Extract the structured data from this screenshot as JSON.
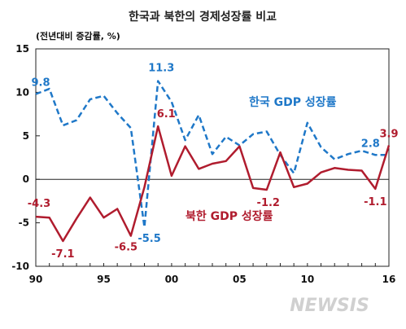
{
  "chart_data": {
    "type": "line",
    "title": "한국과 북한의 경제성장률 비교",
    "unit_label": "(전년대비 증감률, %)",
    "x": [
      1990,
      1991,
      1992,
      1993,
      1994,
      1995,
      1996,
      1997,
      1998,
      1999,
      2000,
      2001,
      2002,
      2003,
      2004,
      2005,
      2006,
      2007,
      2008,
      2009,
      2010,
      2011,
      2012,
      2013,
      2014,
      2015,
      2016
    ],
    "xlim": [
      1990,
      2016
    ],
    "ylim": [
      -10,
      15
    ],
    "yticks": [
      "15",
      "10",
      "5",
      "0",
      "-5",
      "-10"
    ],
    "xticks": [
      {
        "year": 1990,
        "label": "90"
      },
      {
        "year": 1995,
        "label": "95"
      },
      {
        "year": 2000,
        "label": "00"
      },
      {
        "year": 2005,
        "label": "05"
      },
      {
        "year": 2010,
        "label": "10"
      },
      {
        "year": 2016,
        "label": "16"
      }
    ],
    "series": [
      {
        "name": "한국 GDP 성장률",
        "color": "#1f78c8",
        "style": "dashed",
        "values": [
          9.8,
          10.4,
          6.2,
          6.8,
          9.2,
          9.6,
          7.6,
          5.9,
          -5.5,
          11.3,
          8.9,
          4.5,
          7.4,
          2.9,
          4.9,
          3.9,
          5.2,
          5.5,
          2.8,
          0.7,
          6.5,
          3.7,
          2.3,
          2.9,
          3.3,
          2.8,
          2.8
        ],
        "data_labels": [
          {
            "year": 1990,
            "text": "9.8"
          },
          {
            "year": 1999,
            "text": "11.3"
          },
          {
            "year": 1998,
            "text": "-5.5"
          },
          {
            "year": 2015,
            "text": "2.8"
          }
        ]
      },
      {
        "name": "북한 GDP 성장률",
        "color": "#b01c2e",
        "style": "solid",
        "values": [
          -4.3,
          -4.4,
          -7.1,
          -4.5,
          -2.1,
          -4.4,
          -3.4,
          -6.5,
          -0.9,
          6.1,
          0.4,
          3.8,
          1.2,
          1.8,
          2.1,
          3.8,
          -1.0,
          -1.2,
          3.1,
          -0.9,
          -0.5,
          0.8,
          1.3,
          1.1,
          1.0,
          -1.1,
          3.9
        ],
        "data_labels": [
          {
            "year": 1990,
            "text": "-4.3"
          },
          {
            "year": 1992,
            "text": "-7.1"
          },
          {
            "year": 1997,
            "text": "-6.5"
          },
          {
            "year": 1999,
            "text": "6.1"
          },
          {
            "year": 2007,
            "text": "-1.2"
          },
          {
            "year": 2015,
            "text": "-1.1"
          },
          {
            "year": 2016,
            "text": "3.9"
          }
        ]
      }
    ]
  },
  "watermark": "NEWSIS"
}
